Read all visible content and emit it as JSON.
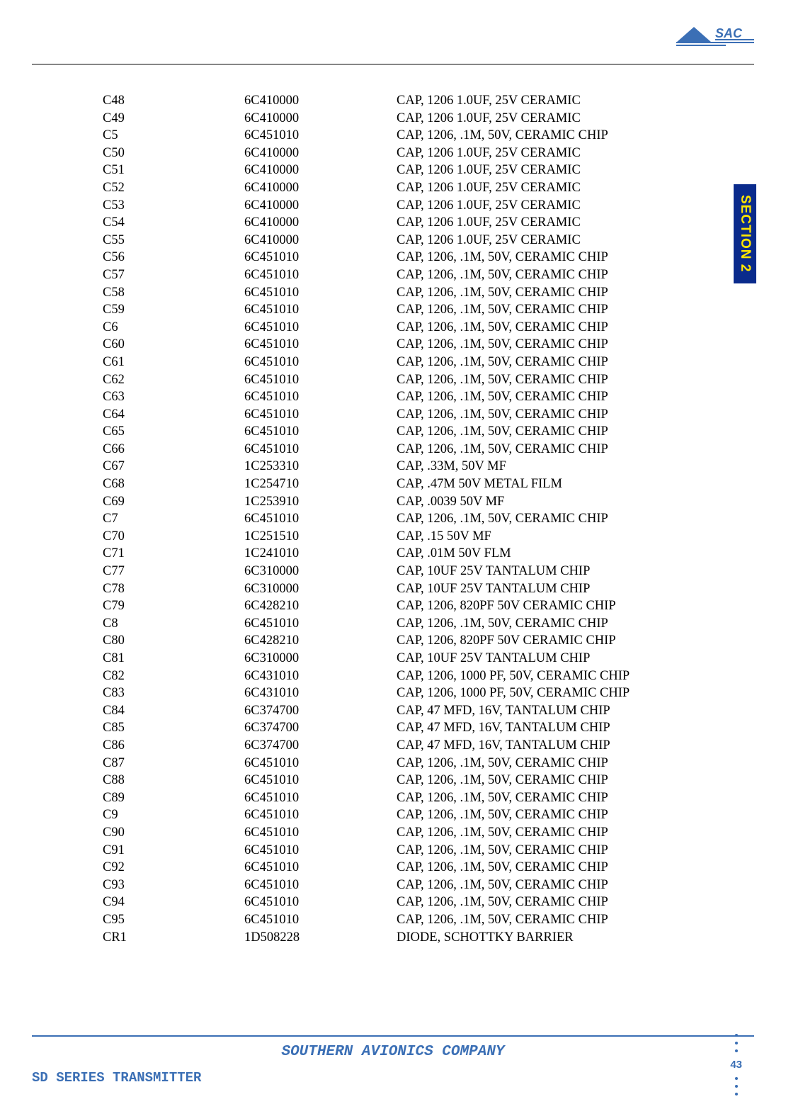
{
  "logo": {
    "stroke": "#3b6fb5",
    "fill": "#3b6fb5"
  },
  "sideTab": {
    "text": "SECTION 2",
    "bg": "#0a2b8c",
    "color": "#ffe600"
  },
  "footer": {
    "center": "SOUTHERN AVIONICS COMPANY",
    "left": "SD SERIES TRANSMITTER",
    "page": "43"
  },
  "columns": [
    "ref",
    "part",
    "desc"
  ],
  "rows": [
    {
      "ref": "C48",
      "part": "6C410000",
      "desc": "CAP, 1206 1.0UF, 25V CERAMIC"
    },
    {
      "ref": "C49",
      "part": "6C410000",
      "desc": "CAP, 1206 1.0UF, 25V CERAMIC"
    },
    {
      "ref": "C5",
      "part": "6C451010",
      "desc": "CAP, 1206, .1M, 50V, CERAMIC CHIP"
    },
    {
      "ref": "C50",
      "part": "6C410000",
      "desc": "CAP, 1206 1.0UF, 25V CERAMIC"
    },
    {
      "ref": "C51",
      "part": "6C410000",
      "desc": "CAP, 1206 1.0UF, 25V CERAMIC"
    },
    {
      "ref": "C52",
      "part": "6C410000",
      "desc": "CAP, 1206 1.0UF, 25V CERAMIC"
    },
    {
      "ref": "C53",
      "part": "6C410000",
      "desc": "CAP, 1206 1.0UF, 25V CERAMIC"
    },
    {
      "ref": "C54",
      "part": "6C410000",
      "desc": "CAP, 1206 1.0UF, 25V CERAMIC"
    },
    {
      "ref": "C55",
      "part": "6C410000",
      "desc": "CAP, 1206 1.0UF, 25V CERAMIC"
    },
    {
      "ref": "C56",
      "part": "6C451010",
      "desc": "CAP, 1206, .1M, 50V, CERAMIC CHIP"
    },
    {
      "ref": "C57",
      "part": "6C451010",
      "desc": "CAP, 1206, .1M, 50V, CERAMIC CHIP"
    },
    {
      "ref": "C58",
      "part": "6C451010",
      "desc": "CAP, 1206, .1M, 50V, CERAMIC CHIP"
    },
    {
      "ref": "C59",
      "part": "6C451010",
      "desc": "CAP, 1206, .1M, 50V, CERAMIC CHIP"
    },
    {
      "ref": "C6",
      "part": "6C451010",
      "desc": "CAP, 1206, .1M, 50V, CERAMIC CHIP"
    },
    {
      "ref": "C60",
      "part": "6C451010",
      "desc": "CAP, 1206, .1M, 50V, CERAMIC CHIP"
    },
    {
      "ref": "C61",
      "part": "6C451010",
      "desc": "CAP, 1206, .1M, 50V, CERAMIC CHIP"
    },
    {
      "ref": "C62",
      "part": "6C451010",
      "desc": "CAP, 1206, .1M, 50V, CERAMIC CHIP"
    },
    {
      "ref": "C63",
      "part": "6C451010",
      "desc": "CAP, 1206, .1M, 50V, CERAMIC CHIP"
    },
    {
      "ref": "C64",
      "part": "6C451010",
      "desc": "CAP, 1206, .1M, 50V, CERAMIC CHIP"
    },
    {
      "ref": "C65",
      "part": "6C451010",
      "desc": "CAP, 1206, .1M, 50V, CERAMIC CHIP"
    },
    {
      "ref": "C66",
      "part": "6C451010",
      "desc": "CAP, 1206, .1M, 50V, CERAMIC CHIP"
    },
    {
      "ref": "C67",
      "part": "1C253310",
      "desc": "CAP, .33M,  50V MF"
    },
    {
      "ref": "C68",
      "part": "1C254710",
      "desc": "CAP, .47M 50V METAL FILM"
    },
    {
      "ref": "C69",
      "part": "1C253910",
      "desc": "CAP, .0039 50V MF"
    },
    {
      "ref": "C7",
      "part": "6C451010",
      "desc": "CAP, 1206, .1M, 50V, CERAMIC CHIP"
    },
    {
      "ref": "C70",
      "part": "1C251510",
      "desc": "CAP, .15 50V MF"
    },
    {
      "ref": "C71",
      "part": "1C241010",
      "desc": "CAP, .01M 50V FLM"
    },
    {
      "ref": "C77",
      "part": "6C310000",
      "desc": "CAP, 10UF 25V TANTALUM  CHIP"
    },
    {
      "ref": "C78",
      "part": "6C310000",
      "desc": "CAP, 10UF 25V TANTALUM  CHIP"
    },
    {
      "ref": "C79",
      "part": "6C428210",
      "desc": "CAP, 1206, 820PF 50V CERAMIC CHIP"
    },
    {
      "ref": "C8",
      "part": "6C451010",
      "desc": "CAP, 1206, .1M, 50V, CERAMIC CHIP"
    },
    {
      "ref": "C80",
      "part": "6C428210",
      "desc": "CAP, 1206, 820PF 50V CERAMIC CHIP"
    },
    {
      "ref": "C81",
      "part": "6C310000",
      "desc": "CAP, 10UF 25V TANTALUM  CHIP"
    },
    {
      "ref": "C82",
      "part": "6C431010",
      "desc": "CAP, 1206, 1000 PF, 50V, CERAMIC CHIP"
    },
    {
      "ref": "C83",
      "part": "6C431010",
      "desc": "CAP, 1206, 1000 PF, 50V, CERAMIC CHIP"
    },
    {
      "ref": "C84",
      "part": "6C374700",
      "desc": "CAP, 47 MFD, 16V, TANTALUM CHIP"
    },
    {
      "ref": "C85",
      "part": "6C374700",
      "desc": "CAP, 47 MFD, 16V, TANTALUM CHIP"
    },
    {
      "ref": "C86",
      "part": "6C374700",
      "desc": "CAP, 47 MFD, 16V, TANTALUM CHIP"
    },
    {
      "ref": "C87",
      "part": "6C451010",
      "desc": "CAP, 1206, .1M, 50V, CERAMIC CHIP"
    },
    {
      "ref": "C88",
      "part": "6C451010",
      "desc": "CAP, 1206, .1M, 50V, CERAMIC CHIP"
    },
    {
      "ref": "C89",
      "part": "6C451010",
      "desc": "CAP, 1206, .1M, 50V, CERAMIC CHIP"
    },
    {
      "ref": "C9",
      "part": "6C451010",
      "desc": "CAP, 1206, .1M, 50V, CERAMIC CHIP"
    },
    {
      "ref": "C90",
      "part": "6C451010",
      "desc": "CAP, 1206, .1M, 50V, CERAMIC CHIP"
    },
    {
      "ref": "C91",
      "part": "6C451010",
      "desc": "CAP, 1206, .1M, 50V, CERAMIC CHIP"
    },
    {
      "ref": "C92",
      "part": "6C451010",
      "desc": "CAP, 1206, .1M, 50V, CERAMIC CHIP"
    },
    {
      "ref": "C93",
      "part": "6C451010",
      "desc": "CAP, 1206, .1M, 50V, CERAMIC CHIP"
    },
    {
      "ref": "C94",
      "part": "6C451010",
      "desc": "CAP, 1206, .1M, 50V, CERAMIC CHIP"
    },
    {
      "ref": "C95",
      "part": "6C451010",
      "desc": "CAP, 1206, .1M, 50V, CERAMIC CHIP"
    },
    {
      "ref": "CR1",
      "part": "1D508228",
      "desc": "DIODE, SCHOTTKY BARRIER"
    }
  ]
}
